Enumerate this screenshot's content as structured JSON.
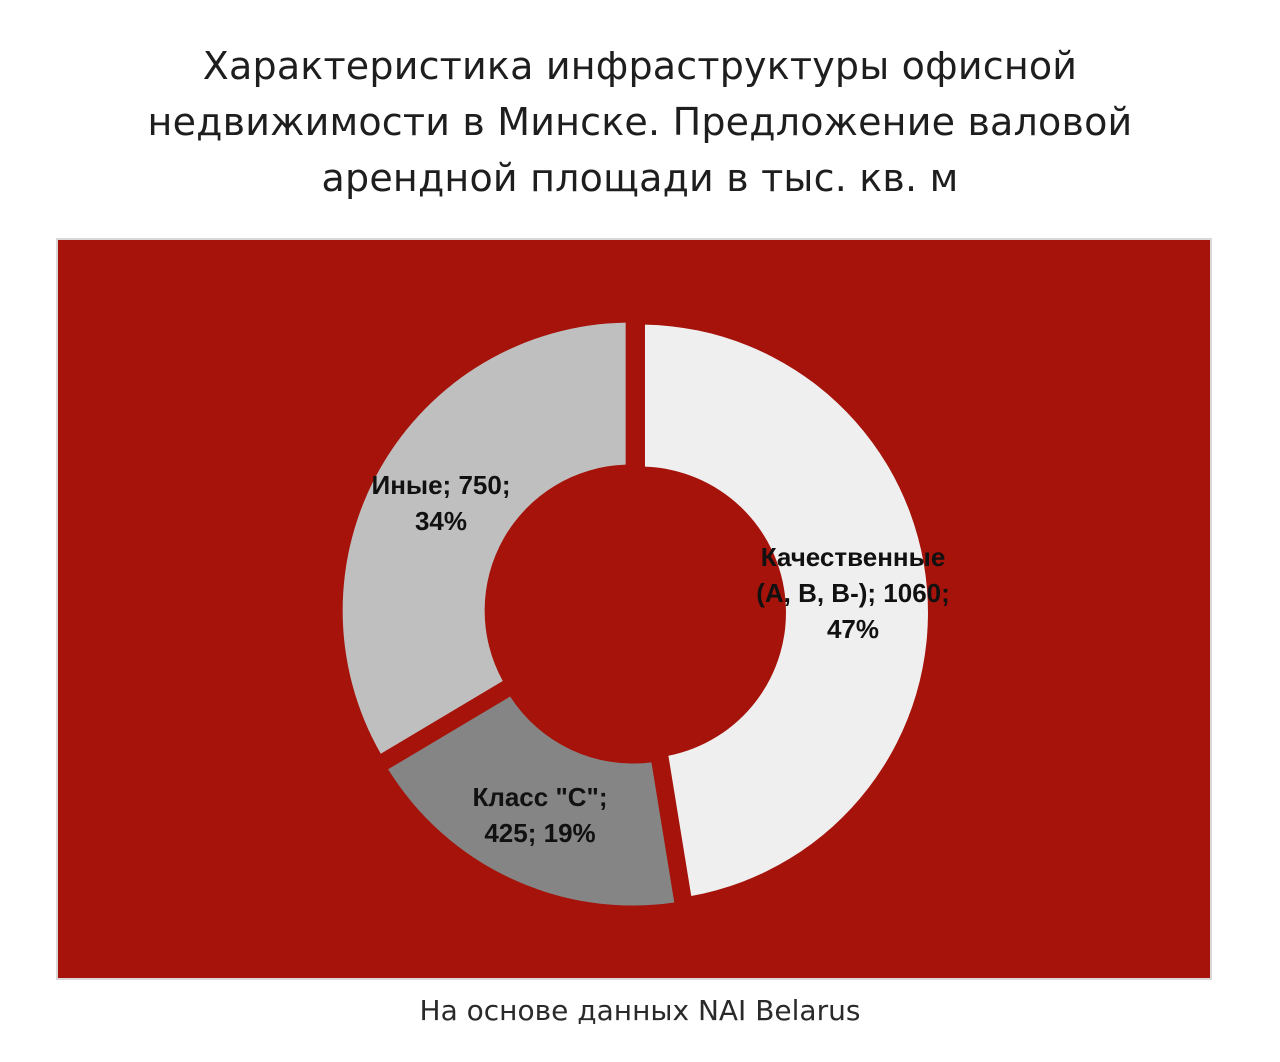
{
  "title_lines": [
    "Характеристика инфраструктуры офисной",
    "недвижимости в Минске.  Предложение валовой",
    "арендной площади в тыс. кв. м"
  ],
  "source": "На основе данных NAI Belarus",
  "colors": {
    "background": "#a5130a",
    "slices": [
      "#efefef",
      "#858585",
      "#bfbfbf"
    ]
  },
  "chart_data": {
    "type": "pie",
    "variant": "donut",
    "title": "Характеристика инфраструктуры офисной недвижимости в Минске.  Предложение валовой арендной площади в тыс. кв. м",
    "unit": "тыс. кв. м",
    "slices": [
      {
        "name": "Качественные (A, B, B-)",
        "value": 1060,
        "percent": 47,
        "label_lines": [
          "Качественные",
          "(A, B, B-); 1060;",
          "47%"
        ]
      },
      {
        "name": "Класс \"С\"",
        "value": 425,
        "percent": 19,
        "label_lines": [
          "Класс \"С\";",
          "425; 19%"
        ]
      },
      {
        "name": "Иные",
        "value": 750,
        "percent": 34,
        "label_lines": [
          "Иные; 750;",
          "34%"
        ]
      }
    ]
  }
}
